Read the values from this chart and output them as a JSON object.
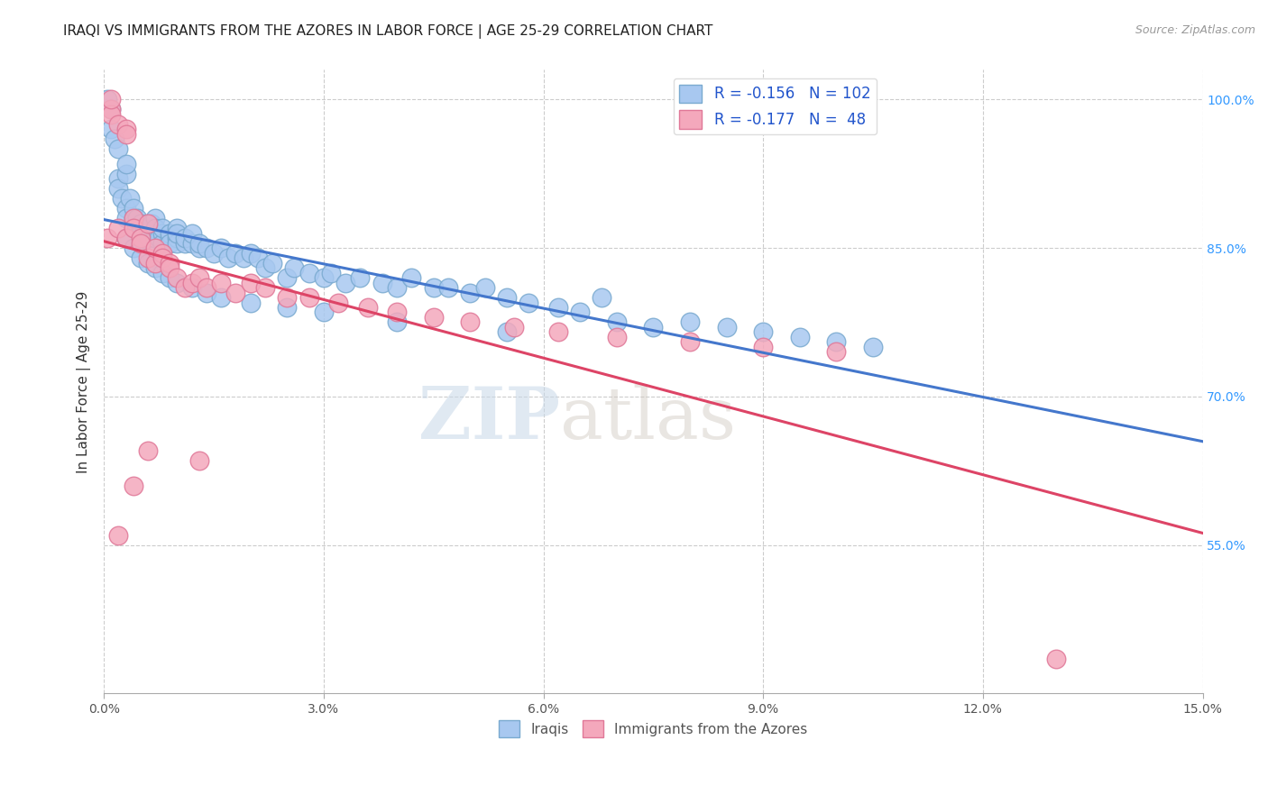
{
  "title": "IRAQI VS IMMIGRANTS FROM THE AZORES IN LABOR FORCE | AGE 25-29 CORRELATION CHART",
  "source": "Source: ZipAtlas.com",
  "ylabel": "In Labor Force | Age 25-29",
  "xlim": [
    0.0,
    0.15
  ],
  "ylim": [
    0.4,
    1.03
  ],
  "xticks": [
    0.0,
    0.03,
    0.06,
    0.09,
    0.12,
    0.15
  ],
  "xticklabels": [
    "0.0%",
    "3.0%",
    "6.0%",
    "9.0%",
    "12.0%",
    "15.0%"
  ],
  "yticks_right": [
    0.55,
    0.7,
    0.85,
    1.0
  ],
  "yticklabels_right": [
    "55.0%",
    "70.0%",
    "85.0%",
    "100.0%"
  ],
  "blue_color": "#a8c8f0",
  "pink_color": "#f4a8bc",
  "blue_edge": "#7aaad0",
  "pink_edge": "#e07898",
  "line_blue": "#4477cc",
  "line_pink": "#dd4466",
  "legend_r_blue": "-0.156",
  "legend_n_blue": "102",
  "legend_r_pink": "-0.177",
  "legend_n_pink": "48",
  "watermark_zip": "ZIP",
  "watermark_atlas": "atlas",
  "blue_scatter_x": [
    0.0005,
    0.001,
    0.001,
    0.0015,
    0.002,
    0.002,
    0.002,
    0.0025,
    0.003,
    0.003,
    0.003,
    0.003,
    0.0035,
    0.004,
    0.004,
    0.004,
    0.004,
    0.0045,
    0.005,
    0.005,
    0.005,
    0.005,
    0.005,
    0.0055,
    0.006,
    0.006,
    0.006,
    0.0065,
    0.007,
    0.007,
    0.007,
    0.007,
    0.0075,
    0.008,
    0.008,
    0.008,
    0.009,
    0.009,
    0.009,
    0.01,
    0.01,
    0.01,
    0.01,
    0.011,
    0.011,
    0.012,
    0.012,
    0.013,
    0.013,
    0.014,
    0.015,
    0.016,
    0.017,
    0.018,
    0.019,
    0.02,
    0.021,
    0.022,
    0.023,
    0.025,
    0.026,
    0.028,
    0.03,
    0.031,
    0.033,
    0.035,
    0.038,
    0.04,
    0.042,
    0.045,
    0.047,
    0.05,
    0.052,
    0.055,
    0.058,
    0.062,
    0.065,
    0.068,
    0.07,
    0.075,
    0.08,
    0.085,
    0.09,
    0.095,
    0.1,
    0.105,
    0.003,
    0.004,
    0.005,
    0.006,
    0.007,
    0.008,
    0.009,
    0.01,
    0.012,
    0.014,
    0.016,
    0.02,
    0.025,
    0.03,
    0.04,
    0.055
  ],
  "blue_scatter_y": [
    1.0,
    0.99,
    0.97,
    0.96,
    0.95,
    0.92,
    0.91,
    0.9,
    0.89,
    0.925,
    0.88,
    0.935,
    0.9,
    0.88,
    0.89,
    0.87,
    0.875,
    0.88,
    0.87,
    0.875,
    0.86,
    0.865,
    0.855,
    0.87,
    0.87,
    0.855,
    0.86,
    0.875,
    0.88,
    0.865,
    0.86,
    0.87,
    0.86,
    0.865,
    0.855,
    0.87,
    0.86,
    0.865,
    0.855,
    0.86,
    0.87,
    0.855,
    0.865,
    0.855,
    0.86,
    0.855,
    0.865,
    0.85,
    0.855,
    0.85,
    0.845,
    0.85,
    0.84,
    0.845,
    0.84,
    0.845,
    0.84,
    0.83,
    0.835,
    0.82,
    0.83,
    0.825,
    0.82,
    0.825,
    0.815,
    0.82,
    0.815,
    0.81,
    0.82,
    0.81,
    0.81,
    0.805,
    0.81,
    0.8,
    0.795,
    0.79,
    0.785,
    0.8,
    0.775,
    0.77,
    0.775,
    0.77,
    0.765,
    0.76,
    0.755,
    0.75,
    0.86,
    0.85,
    0.84,
    0.835,
    0.83,
    0.825,
    0.82,
    0.815,
    0.81,
    0.805,
    0.8,
    0.795,
    0.79,
    0.785,
    0.775,
    0.765
  ],
  "pink_scatter_x": [
    0.0005,
    0.001,
    0.001,
    0.001,
    0.002,
    0.002,
    0.003,
    0.003,
    0.003,
    0.004,
    0.004,
    0.005,
    0.005,
    0.006,
    0.006,
    0.007,
    0.007,
    0.008,
    0.008,
    0.009,
    0.009,
    0.01,
    0.011,
    0.012,
    0.013,
    0.014,
    0.016,
    0.018,
    0.02,
    0.022,
    0.025,
    0.028,
    0.032,
    0.036,
    0.04,
    0.045,
    0.05,
    0.056,
    0.062,
    0.07,
    0.08,
    0.09,
    0.1,
    0.004,
    0.006,
    0.013,
    0.13,
    0.002
  ],
  "pink_scatter_y": [
    0.86,
    0.99,
    0.985,
    1.0,
    0.975,
    0.87,
    0.97,
    0.965,
    0.86,
    0.88,
    0.87,
    0.86,
    0.855,
    0.875,
    0.84,
    0.835,
    0.85,
    0.845,
    0.84,
    0.835,
    0.83,
    0.82,
    0.81,
    0.815,
    0.82,
    0.81,
    0.815,
    0.805,
    0.815,
    0.81,
    0.8,
    0.8,
    0.795,
    0.79,
    0.785,
    0.78,
    0.775,
    0.77,
    0.765,
    0.76,
    0.755,
    0.75,
    0.745,
    0.61,
    0.645,
    0.635,
    0.435,
    0.56
  ],
  "title_fontsize": 11,
  "axis_label_fontsize": 11,
  "tick_fontsize": 10
}
